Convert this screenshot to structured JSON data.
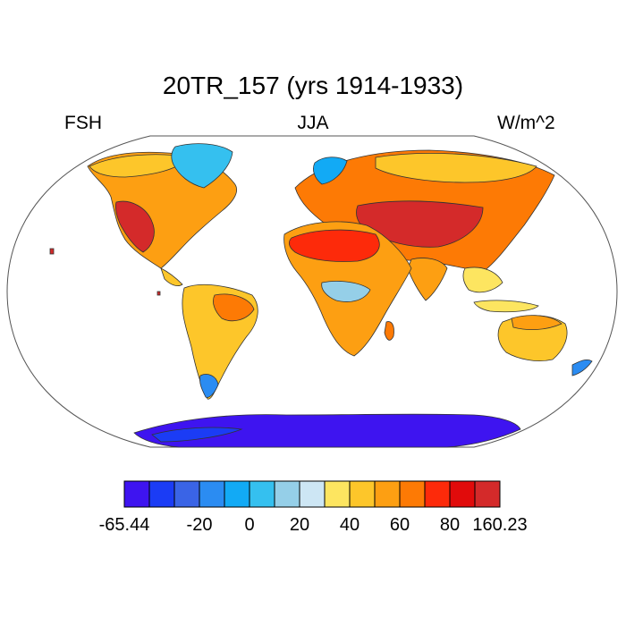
{
  "title": "20TR_157 (yrs 1914-1933)",
  "variable": "FSH",
  "season": "JJA",
  "units": "W/m^2",
  "colorbar": {
    "colors": [
      "#3e14f0",
      "#1b3cf5",
      "#3a64e6",
      "#2b8cf2",
      "#12aaf5",
      "#35c0ef",
      "#95cfe8",
      "#cde6f4",
      "#fde560",
      "#fdc62a",
      "#fd9f12",
      "#fd7a05",
      "#fd2a0a",
      "#e10b0b",
      "#d42a2a"
    ],
    "tick_labels": [
      "-65.44",
      "-20",
      "0",
      "20",
      "40",
      "60",
      "80",
      "160.23"
    ],
    "tick_boundaries": [
      0,
      3,
      5,
      7,
      9,
      11,
      13,
      15
    ]
  },
  "legend_values": {
    "min": -65.44,
    "max": 160.23
  }
}
